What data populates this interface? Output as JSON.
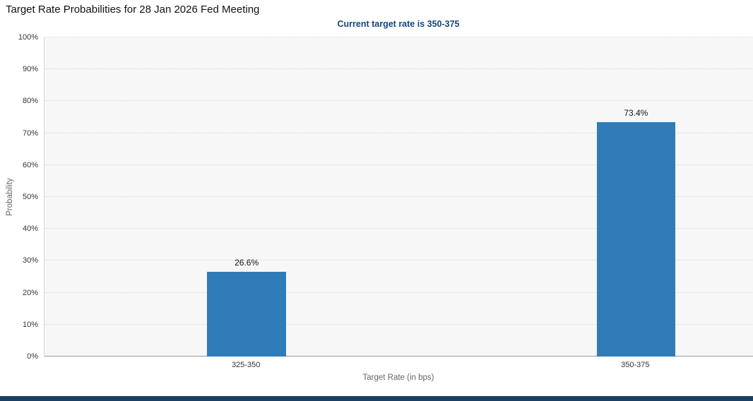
{
  "chart_data": {
    "type": "bar",
    "title": "Target Rate Probabilities for 28 Jan 2026 Fed Meeting",
    "subtitle": "Current target rate is 350-375",
    "categories": [
      "325-350",
      "350-375"
    ],
    "values": [
      26.6,
      73.4
    ],
    "value_labels": [
      "26.6%",
      "73.4%"
    ],
    "xlabel": "Target Rate (in bps)",
    "ylabel": "Probability",
    "ylim": [
      0,
      100
    ],
    "ytick_step": 10,
    "ytick_suffix": "%",
    "grid": true,
    "legend": false,
    "layout": {
      "bar_centers_frac": [
        0.285,
        0.834
      ],
      "bar_width_frac": 0.111,
      "colors": {
        "bar": "#2f7cb9",
        "subtitle_text": "#14477d",
        "plot_background": "#f7f7f7",
        "gridline": "#d8d8d8",
        "footer_strip": "#1d3e63"
      }
    }
  }
}
